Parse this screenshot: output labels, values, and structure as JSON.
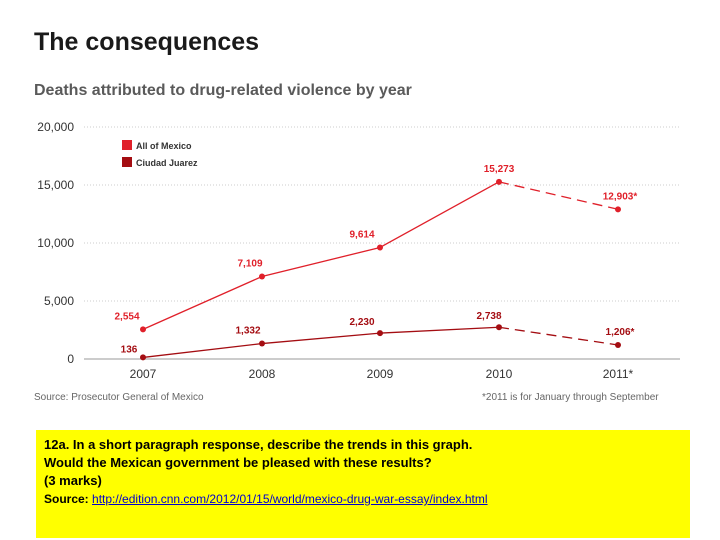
{
  "slide": {
    "title": "The consequences"
  },
  "chart_data": {
    "type": "line",
    "title": "Deaths attributed to drug-related violence by year",
    "categories": [
      "2007",
      "2008",
      "2009",
      "2010",
      "2011*"
    ],
    "ylim": [
      0,
      20000
    ],
    "yticks": [
      "0",
      "5,000",
      "10,000",
      "15,000",
      "20,000"
    ],
    "grid": true,
    "legend_position": "top-left",
    "series": [
      {
        "name": "All of Mexico",
        "color": "#e0202a",
        "values": [
          2554,
          7109,
          9614,
          15273,
          12903
        ],
        "labels": [
          "2,554",
          "7,109",
          "9,614",
          "15,273",
          "12,903*"
        ]
      },
      {
        "name": "Ciudad Juarez",
        "color": "#a40d12",
        "values": [
          136,
          1332,
          2230,
          2738,
          1206
        ],
        "labels": [
          "136",
          "1,332",
          "2,230",
          "2,738",
          "1,206*"
        ]
      }
    ],
    "dashed_last_segment": true,
    "source": "Source: Prosecutor General of Mexico",
    "footnote": "*2011 is for January through September"
  },
  "question": {
    "line1": "12a.  In a short paragraph response, describe the trends in this graph.",
    "line2": "Would the Mexican government be pleased with these results?",
    "line3": "(3 marks)",
    "source_label": "Source:",
    "source_url": "http://edition.cnn.com/2012/01/15/world/mexico-drug-war-essay/index.html"
  }
}
